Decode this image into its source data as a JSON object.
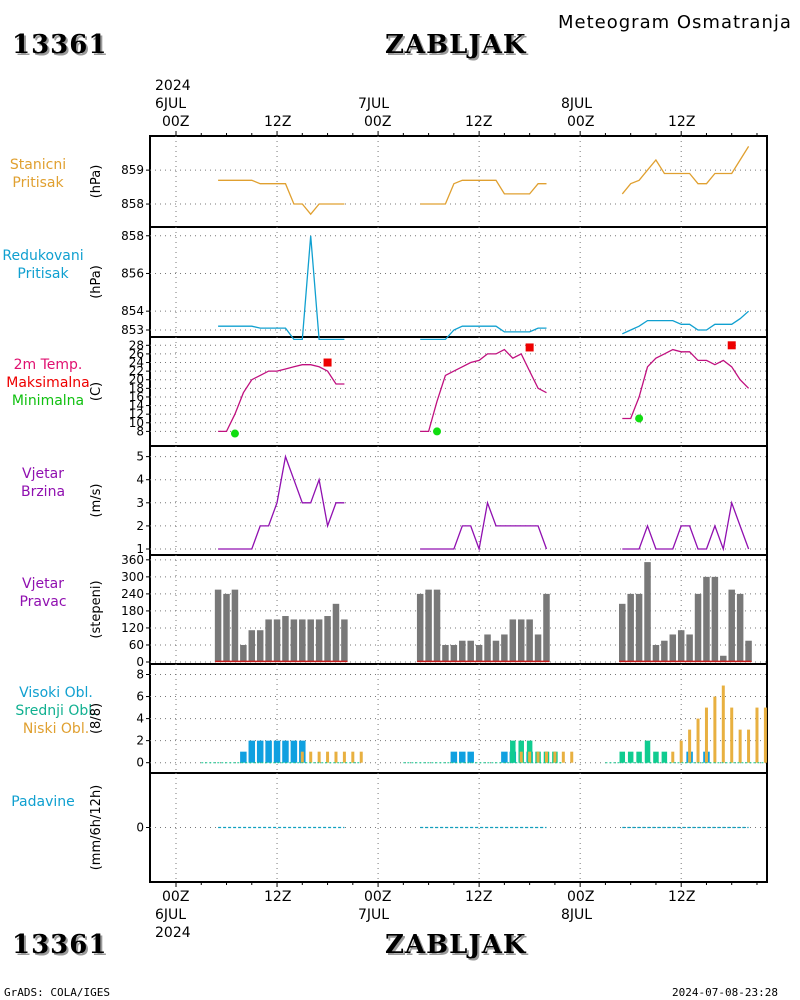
{
  "header": {
    "station_id": "13361",
    "station_name": "ZABLJAK",
    "subtitle": "Meteogram Osmatranja"
  },
  "time_axis": {
    "year": "2024",
    "day_labels": [
      "6JUL",
      "7JUL",
      "8JUL"
    ],
    "hour_labels": [
      "00Z",
      "12Z",
      "00Z",
      "12Z",
      "00Z",
      "12Z"
    ]
  },
  "panel_labels": {
    "pressure": [
      "Stanicni",
      "Pritisak"
    ],
    "reduced": [
      "Redukovani",
      "Pritisak"
    ],
    "temp": [
      "2m Temp.",
      "Maksimalna",
      "Minimalna"
    ],
    "wind_speed": [
      "Vjetar",
      "Brzina"
    ],
    "wind_dir": [
      "Vjetar",
      "Pravac"
    ],
    "clouds": [
      "Visoki Obl.",
      "Srednji Obl.",
      "Niski Obl."
    ],
    "precip": [
      "Padavine"
    ]
  },
  "units": {
    "pressure": "(hPa)",
    "reduced": "(hPa)",
    "temp": "(C)",
    "wind_speed": "(m/s)",
    "wind_dir": "(stepeni)",
    "clouds": "(8/8)",
    "precip": "(mm/6h/12h)"
  },
  "colors": {
    "pressure": "#e0a030",
    "reduced": "#10a0d0",
    "temp": "#c0107f",
    "tmax": "#ee0000",
    "tmin": "#10dd10",
    "wind": "#9010b0",
    "winddir": "#787878",
    "high": "#10a0e0",
    "mid": "#10cc90",
    "low": "#e8b040",
    "precip": "#10a0c0",
    "label_pressure": "#e0a030",
    "label_reduced": "#10a0d0",
    "label_temp": "#e01070",
    "label_max": "#ee0000",
    "label_min": "#10c010",
    "label_wind": "#9010b0",
    "label_clouds_high": "#10a0d0",
    "label_clouds_mid": "#10b090",
    "label_clouds_low": "#e0a030",
    "label_precip": "#10a0d0"
  },
  "footer": {
    "left": "GrADS: COLA/IGES",
    "right": "2024-07-08-23:28"
  },
  "chart_data": [
    {
      "type": "line",
      "name": "Stanicni Pritisak",
      "x_unit": "hours from 2024-07-06 00Z",
      "ylim": [
        857.5,
        859.8
      ],
      "yticks": [
        858,
        859
      ],
      "grid": true,
      "segments": [
        {
          "x": [
            5,
            6,
            7,
            8,
            9,
            10,
            11,
            12,
            13,
            14,
            15,
            16,
            17,
            18,
            19,
            20
          ],
          "y": [
            858.7,
            858.7,
            858.7,
            858.7,
            858.7,
            858.6,
            858.6,
            858.6,
            858.6,
            858.0,
            858.0,
            857.7,
            858.0,
            858.0,
            858.0,
            858.0
          ]
        },
        {
          "x": [
            29,
            30,
            31,
            32,
            33,
            34,
            35,
            36,
            37,
            38,
            39,
            40,
            41,
            42,
            43,
            44
          ],
          "y": [
            858.0,
            858.0,
            858.0,
            858.0,
            858.6,
            858.7,
            858.7,
            858.7,
            858.7,
            858.7,
            858.3,
            858.3,
            858.3,
            858.3,
            858.6,
            858.6
          ]
        },
        {
          "x": [
            53,
            54,
            55,
            56,
            57,
            58,
            59,
            60,
            61,
            62,
            63,
            64,
            65,
            66,
            67,
            68
          ],
          "y": [
            858.3,
            858.6,
            858.7,
            859.0,
            859.3,
            858.9,
            858.9,
            858.9,
            858.9,
            858.6,
            858.6,
            858.9,
            858.9,
            858.9,
            859.3,
            859.7
          ]
        }
      ]
    },
    {
      "type": "line",
      "name": "Redukovani Pritisak",
      "x_unit": "hours from 2024-07-06 00Z",
      "ylim": [
        853,
        858.2
      ],
      "yticks": [
        853,
        854,
        856,
        858
      ],
      "grid": true,
      "segments": [
        {
          "x": [
            5,
            6,
            7,
            8,
            9,
            10,
            11,
            12,
            13,
            14,
            15,
            16,
            17,
            18,
            19,
            20
          ],
          "y": [
            853.2,
            853.2,
            853.2,
            853.2,
            853.2,
            853.1,
            853.1,
            853.1,
            853.1,
            852.5,
            852.5,
            858.0,
            852.5,
            852.5,
            852.5,
            852.5
          ]
        },
        {
          "x": [
            29,
            30,
            31,
            32,
            33,
            34,
            35,
            36,
            37,
            38,
            39,
            40,
            41,
            42,
            43,
            44
          ],
          "y": [
            852.5,
            852.5,
            852.5,
            852.5,
            853.0,
            853.2,
            853.2,
            853.2,
            853.2,
            853.2,
            852.9,
            852.9,
            852.9,
            852.9,
            853.1,
            853.1
          ]
        },
        {
          "x": [
            53,
            54,
            55,
            56,
            57,
            58,
            59,
            60,
            61,
            62,
            63,
            64,
            65,
            66,
            67,
            68
          ],
          "y": [
            852.8,
            853.0,
            853.2,
            853.5,
            853.5,
            853.5,
            853.5,
            853.3,
            853.3,
            853.0,
            853.0,
            853.3,
            853.3,
            853.3,
            853.6,
            854.0
          ]
        }
      ]
    },
    {
      "type": "line",
      "name": "2m Temp.",
      "y_unit": "C",
      "ylim": [
        6,
        29
      ],
      "yticks": [
        8,
        10,
        12,
        14,
        16,
        18,
        20,
        22,
        24,
        26,
        28
      ],
      "grid": true,
      "segments": [
        {
          "x": [
            5,
            6,
            7,
            8,
            9,
            10,
            11,
            12,
            13,
            14,
            15,
            16,
            17,
            18,
            19,
            20
          ],
          "y": [
            8,
            8,
            12,
            17,
            20,
            21,
            22,
            22,
            22.5,
            23,
            23.5,
            23.5,
            23,
            22,
            19,
            19
          ]
        },
        {
          "x": [
            29,
            30,
            31,
            32,
            33,
            34,
            35,
            36,
            37,
            38,
            39,
            40,
            41,
            42,
            43,
            44
          ],
          "y": [
            8,
            8,
            15,
            21,
            22,
            23,
            24,
            24.5,
            26,
            26,
            27,
            25,
            26,
            22,
            18,
            17
          ]
        },
        {
          "x": [
            53,
            54,
            55,
            56,
            57,
            58,
            59,
            60,
            61,
            62,
            63,
            64,
            65,
            66,
            67,
            68
          ],
          "y": [
            11,
            11,
            16,
            23,
            25,
            26,
            27,
            26.5,
            26.5,
            24.5,
            24.5,
            23.5,
            24.5,
            23,
            20,
            18
          ]
        }
      ],
      "max_points": [
        {
          "x": 18,
          "y": 24
        },
        {
          "x": 42,
          "y": 27.5
        },
        {
          "x": 66,
          "y": 28
        }
      ],
      "min_points": [
        {
          "x": 7,
          "y": 7.5
        },
        {
          "x": 31,
          "y": 8
        },
        {
          "x": 55,
          "y": 11
        }
      ]
    },
    {
      "type": "line",
      "name": "Vjetar Brzina",
      "y_unit": "m/s",
      "ylim": [
        1,
        5.2
      ],
      "yticks": [
        1,
        2,
        3,
        4,
        5
      ],
      "grid": true,
      "segments": [
        {
          "x": [
            5,
            6,
            7,
            8,
            9,
            10,
            11,
            12,
            13,
            14,
            15,
            16,
            17,
            18,
            19,
            20
          ],
          "y": [
            1,
            1,
            1,
            1,
            1,
            2,
            2,
            3,
            5,
            4,
            3,
            3,
            4,
            2,
            3,
            3
          ]
        },
        {
          "x": [
            29,
            30,
            31,
            32,
            33,
            34,
            35,
            36,
            37,
            38,
            39,
            40,
            41,
            42,
            43,
            44
          ],
          "y": [
            1,
            1,
            1,
            1,
            1,
            2,
            2,
            1,
            3,
            2,
            2,
            2,
            2,
            2,
            2,
            1
          ]
        },
        {
          "x": [
            53,
            54,
            55,
            56,
            57,
            58,
            59,
            60,
            61,
            62,
            63,
            64,
            65,
            66,
            67,
            68
          ],
          "y": [
            1,
            1,
            1,
            2,
            1,
            1,
            1,
            2,
            2,
            1,
            1,
            2,
            1,
            3,
            2,
            1
          ]
        }
      ]
    },
    {
      "type": "bar",
      "name": "Vjetar Pravac",
      "y_unit": "stepeni",
      "ylim": [
        0,
        370
      ],
      "yticks": [
        0,
        60,
        120,
        180,
        240,
        300,
        360
      ],
      "grid": true,
      "x": [
        5,
        6,
        7,
        8,
        9,
        10,
        11,
        12,
        13,
        14,
        15,
        16,
        17,
        18,
        19,
        20,
        29,
        30,
        31,
        32,
        33,
        34,
        35,
        36,
        37,
        38,
        39,
        40,
        41,
        42,
        43,
        44,
        53,
        54,
        55,
        56,
        57,
        58,
        59,
        60,
        61,
        62,
        63,
        64,
        65,
        66,
        67,
        68
      ],
      "values": [
        255,
        240,
        255,
        60,
        112,
        112,
        150,
        150,
        162,
        150,
        150,
        150,
        150,
        162,
        205,
        150,
        240,
        255,
        255,
        60,
        60,
        75,
        75,
        60,
        97,
        75,
        97,
        150,
        150,
        150,
        97,
        240,
        205,
        240,
        240,
        352,
        60,
        75,
        97,
        112,
        97,
        240,
        300,
        300,
        22,
        255,
        240,
        75
      ],
      "secondary_line": {
        "color": "#cc2020",
        "value": 2
      }
    },
    {
      "type": "bar",
      "name": "Oblacnost",
      "y_unit": "8/8",
      "ylim": [
        -0.3,
        8.5
      ],
      "yticks": [
        0,
        2,
        4,
        6,
        8
      ],
      "grid": true,
      "series": [
        {
          "name": "Visoki Obl.",
          "x": [
            8,
            9,
            10,
            11,
            12,
            13,
            14,
            15,
            33,
            34,
            35,
            39,
            40,
            42,
            61,
            63
          ],
          "values": [
            1,
            2,
            2,
            2,
            2,
            2,
            2,
            2,
            1,
            1,
            1,
            1,
            1,
            1,
            1,
            1
          ]
        },
        {
          "name": "Srednji Obl.",
          "x": [
            40,
            41,
            42,
            43,
            44,
            45,
            53,
            54,
            55,
            56,
            57,
            58
          ],
          "values": [
            2,
            2,
            2,
            1,
            1,
            1,
            1,
            1,
            1,
            2,
            1,
            1
          ]
        },
        {
          "name": "Niski Obl.",
          "x": [
            15,
            16,
            17,
            18,
            19,
            20,
            21,
            22,
            41,
            42,
            43,
            44,
            45,
            46,
            47,
            59,
            60,
            61,
            62,
            63,
            64,
            65,
            66,
            67,
            68,
            69,
            70
          ],
          "values": [
            1,
            1,
            1,
            1,
            1,
            1,
            1,
            1,
            1,
            1,
            1,
            1,
            1,
            1,
            1,
            1,
            2,
            3,
            4,
            5,
            6,
            7,
            5,
            3,
            3,
            5,
            5
          ]
        }
      ]
    },
    {
      "type": "line",
      "name": "Padavine",
      "y_unit": "mm/6h/12h",
      "ylim": [
        -1,
        1
      ],
      "yticks": [
        0
      ],
      "grid": true,
      "segments": [
        {
          "x": [
            5,
            20
          ],
          "y": [
            0,
            0
          ]
        },
        {
          "x": [
            29,
            44
          ],
          "y": [
            0,
            0
          ]
        },
        {
          "x": [
            53,
            68
          ],
          "y": [
            0,
            0
          ]
        }
      ]
    }
  ]
}
